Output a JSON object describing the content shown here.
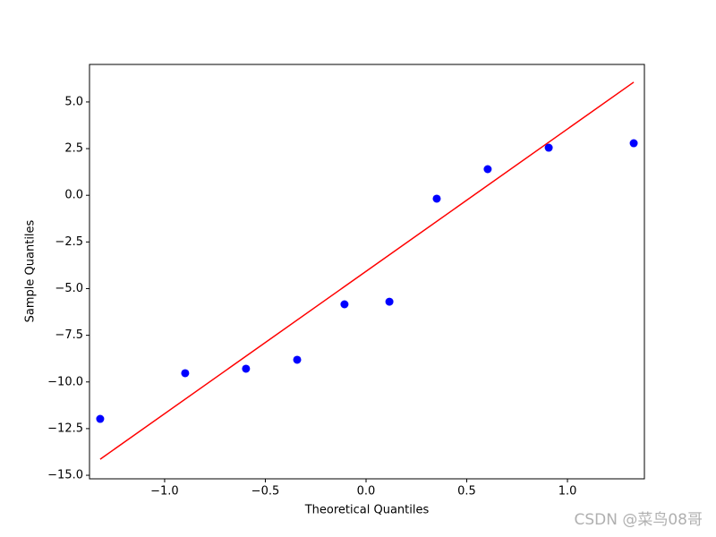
{
  "chart_data": {
    "type": "scatter",
    "xlabel": "Theoretical Quantiles",
    "ylabel": "Sample Quantiles",
    "points": {
      "color": "#0000ff",
      "x": [
        -1.32,
        -0.898,
        -0.596,
        -0.342,
        -0.107,
        0.116,
        0.351,
        0.604,
        0.907,
        1.329
      ],
      "y": [
        -11.98,
        -9.53,
        -9.29,
        -8.81,
        -5.84,
        -5.7,
        -0.18,
        1.4,
        2.55,
        2.79
      ]
    },
    "line": {
      "color": "#ff0000",
      "x": [
        -1.32,
        1.329
      ],
      "y": [
        -14.14,
        6.06
      ]
    },
    "xlim": [
      -1.373,
      1.382
    ],
    "xticks": [
      {
        "value": -1.0,
        "label": "−1.0"
      },
      {
        "value": -0.5,
        "label": "−0.5"
      },
      {
        "value": 0,
        "label": "0.0"
      },
      {
        "value": 0.5,
        "label": "0.5"
      },
      {
        "value": 1.0,
        "label": "1.0"
      }
    ],
    "ylim": [
      -15.19,
      7.01
    ],
    "yticks": [
      {
        "value": -15,
        "label": "−15.0"
      },
      {
        "value": -12.5,
        "label": "−12.5"
      },
      {
        "value": -10,
        "label": "−10.0"
      },
      {
        "value": -7.5,
        "label": "−7.5"
      },
      {
        "value": -5,
        "label": "−5.0"
      },
      {
        "value": -2.5,
        "label": "−2.5"
      },
      {
        "value": 0,
        "label": "0.0"
      },
      {
        "value": 2.5,
        "label": "2.5"
      },
      {
        "value": 5,
        "label": "5.0"
      }
    ],
    "watermark": "CSDN @菜鸟08哥"
  }
}
